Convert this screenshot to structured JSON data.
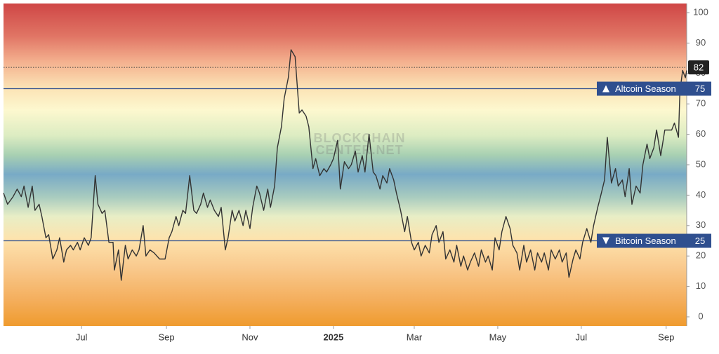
{
  "chart_data": {
    "type": "line",
    "x": [
      -57,
      -54,
      -50,
      -47,
      -44,
      -42,
      -39,
      -36,
      -34,
      -31,
      -29,
      -26,
      -24,
      -21,
      -18,
      -16,
      -13,
      -11,
      -8,
      -6,
      -3,
      -1,
      2,
      5,
      7,
      10,
      12,
      15,
      17,
      20,
      23,
      24,
      27,
      29,
      32,
      34,
      37,
      40,
      42,
      45,
      47,
      50,
      53,
      57,
      61,
      64,
      66,
      69,
      71,
      74,
      76,
      79,
      82,
      84,
      87,
      89,
      92,
      94,
      97,
      100,
      102,
      105,
      107,
      110,
      112,
      115,
      118,
      120,
      123,
      125,
      128,
      130,
      133,
      136,
      138,
      141,
      143,
      146,
      148,
      151,
      153,
      156,
      159,
      161,
      164,
      166,
      169,
      171,
      174,
      177,
      179,
      182,
      184,
      187,
      189,
      192,
      195,
      197,
      200,
      202,
      205,
      207,
      210,
      213,
      215,
      218,
      220,
      223,
      225,
      228,
      230,
      233,
      236,
      238,
      241,
      243,
      246,
      248,
      251,
      254,
      256,
      259,
      261,
      264,
      266,
      269,
      272,
      274,
      277,
      279,
      282,
      284,
      287,
      290,
      292,
      295,
      297,
      300,
      302,
      305,
      307,
      310,
      313,
      315,
      318,
      320,
      323,
      325,
      328,
      331,
      333,
      336,
      338,
      341,
      343,
      346,
      349,
      351,
      354,
      356,
      359,
      361,
      364,
      366,
      369,
      372,
      374,
      377,
      379,
      382,
      384,
      387,
      390,
      392,
      395,
      397,
      400,
      402,
      405,
      408,
      410,
      413,
      415,
      418,
      420,
      423,
      426,
      428,
      431,
      433,
      436,
      437,
      439,
      441,
      442
    ],
    "values": [
      40.7,
      37,
      39.5,
      42,
      39.5,
      43,
      36,
      43,
      35,
      37,
      33,
      26,
      27,
      19,
      22,
      26,
      18,
      22,
      23.5,
      22,
      24.5,
      22,
      26,
      23.5,
      26,
      46.4,
      37,
      34,
      35,
      24.5,
      24.5,
      15.4,
      22,
      12,
      23.5,
      19,
      22,
      20,
      22,
      30,
      20,
      22,
      21,
      19,
      19,
      26,
      28,
      33,
      30,
      35,
      34,
      46.4,
      35,
      34,
      37,
      40.7,
      36,
      38.4,
      35,
      33,
      36,
      22,
      26,
      35,
      31.5,
      35,
      30,
      35,
      29,
      36,
      43,
      40.7,
      35,
      42,
      36,
      43,
      55.6,
      62.5,
      71.7,
      78.6,
      87.8,
      85.5,
      67,
      68,
      66,
      62.5,
      48.7,
      52,
      46.4,
      48.7,
      47.6,
      50,
      52,
      58,
      42,
      51,
      48.7,
      50,
      54.5,
      47.6,
      53,
      47.6,
      60,
      47.6,
      46.4,
      42,
      46.4,
      44,
      48.7,
      45,
      40.7,
      35,
      28,
      33,
      24.5,
      22,
      24.5,
      20,
      23.5,
      21,
      27,
      30,
      24.5,
      28,
      19,
      22,
      18,
      23.5,
      16.6,
      20,
      15.4,
      18,
      21,
      16.6,
      22,
      18,
      20,
      15.4,
      26,
      22,
      28,
      33,
      29,
      23.5,
      21,
      15.4,
      23.5,
      18,
      22,
      15.4,
      21,
      18,
      21,
      15.4,
      22,
      19,
      22,
      18,
      21,
      13,
      19,
      22,
      19,
      24.5,
      29,
      24.5,
      30,
      36,
      39.5,
      45,
      59,
      44,
      48.7,
      43,
      45,
      39.5,
      48.7,
      37,
      43,
      40.7,
      50,
      56.8,
      52,
      55.6,
      61.4,
      53,
      61.4,
      61.4,
      61.4,
      63.7,
      59,
      74,
      81,
      78.6,
      81
    ],
    "color": "#333333",
    "xlim": [
      -57,
      442
    ],
    "xticks": [
      {
        "value": 0,
        "label": "Jul"
      },
      {
        "value": 62,
        "label": "Sep"
      },
      {
        "value": 123,
        "label": "Nov"
      },
      {
        "value": 184,
        "label": "2025"
      },
      {
        "value": 243,
        "label": "Mar"
      },
      {
        "value": 304,
        "label": "May"
      },
      {
        "value": 365,
        "label": "Jul"
      },
      {
        "value": 427,
        "label": "Sep"
      }
    ],
    "ylim": [
      -3,
      103
    ],
    "yticks": [
      0,
      10,
      20,
      30,
      40,
      50,
      60,
      70,
      80,
      90,
      100
    ],
    "reference_lines": [
      {
        "label": "Altcoin Season",
        "value": 75,
        "direction": "up",
        "color": "#2f4f8f"
      },
      {
        "label": "Bitcoin Season",
        "value": 25,
        "direction": "down",
        "color": "#2f4f8f"
      }
    ],
    "current_value": 82,
    "watermark": [
      "BLOCKCHAIN",
      "CENTER.NET"
    ]
  }
}
